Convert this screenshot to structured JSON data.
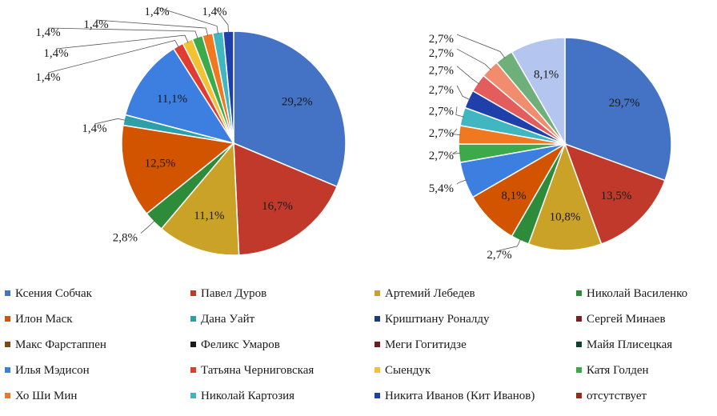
{
  "chart_data": [
    {
      "type": "pie",
      "slices": [
        {
          "name": "Ксения Собчак",
          "value": 29.2,
          "label": "29,2%"
        },
        {
          "name": "Павел Дуров",
          "value": 16.7,
          "label": "16,7%"
        },
        {
          "name": "Артемий Лебедев",
          "value": 11.1,
          "label": "11,1%"
        },
        {
          "name": "Николай Василенко",
          "value": 2.8,
          "label": "2,8%"
        },
        {
          "name": "Илон Маск",
          "value": 12.5,
          "label": "12,5%"
        },
        {
          "name": "Дана Уайт",
          "value": 1.4,
          "label": "1,4%"
        },
        {
          "name": "Илья Мэдисон",
          "value": 11.1,
          "label": "11,1%"
        },
        {
          "name": "Татьяна Черниговская",
          "value": 1.4,
          "label": "1,4%"
        },
        {
          "name": "Сыендук",
          "value": 1.4,
          "label": "1,4%"
        },
        {
          "name": "Катя Голден",
          "value": 1.4,
          "label": "1,4%"
        },
        {
          "name": "Хо Ши Мин",
          "value": 1.4,
          "label": "1,4%"
        },
        {
          "name": "Николай Картозия",
          "value": 1.4,
          "label": "1,4%"
        },
        {
          "name": "Никита Иванов (Кит Иванов)",
          "value": 1.4,
          "label": "1,4%"
        }
      ]
    },
    {
      "type": "pie",
      "slices": [
        {
          "name": "Ксения Собчак",
          "value": 29.7,
          "label": "29,7%"
        },
        {
          "name": "Павел Дуров",
          "value": 13.5,
          "label": "13,5%"
        },
        {
          "name": "Артемий Лебедев",
          "value": 10.8,
          "label": "10,8%"
        },
        {
          "name": "Николай Василенко",
          "value": 2.7,
          "label": "2,7%"
        },
        {
          "name": "Илон Маск",
          "value": 8.1,
          "label": "8,1%"
        },
        {
          "name": "Илья Мэдисон",
          "value": 5.4,
          "label": "5,4%"
        },
        {
          "name": "Катя Голден",
          "value": 2.7,
          "label": "2,7%"
        },
        {
          "name": "Хо Ши Мин",
          "value": 2.7,
          "label": "2,7%"
        },
        {
          "name": "Николай Картозия",
          "value": 2.7,
          "label": "2,7%"
        },
        {
          "name": "Никита Иванов (Кит Иванов)",
          "value": 2.7,
          "label": "2,7%"
        },
        {
          "name": "Татьяна Черниговская",
          "value": 2.7,
          "label": "2,7%"
        },
        {
          "name": "Сыендук",
          "value": 2.7,
          "label": "2,7%"
        },
        {
          "name": "Катя Голден",
          "value": 2.7,
          "label": "2,7%"
        },
        {
          "name": "отсутствует",
          "value": 8.1,
          "label": "8,1%"
        }
      ]
    }
  ],
  "legend": [
    {
      "name": "Ксения Собчак",
      "color": "#4472C4"
    },
    {
      "name": "Павел Дуров",
      "color": "#C0392B"
    },
    {
      "name": "Артемий Лебедев",
      "color": "#C9A227"
    },
    {
      "name": "Николай Василенко",
      "color": "#2E8B3A"
    },
    {
      "name": "Илон Маск",
      "color": "#D35400"
    },
    {
      "name": "Дана Уайт",
      "color": "#2E9EA8"
    },
    {
      "name": "Криштиану Роналду",
      "color": "#1F3A7A"
    },
    {
      "name": "Сергей Минаев",
      "color": "#7B2020"
    },
    {
      "name": "Макс Фарстаппен",
      "color": "#7A4A10"
    },
    {
      "name": "Феликс Умаров",
      "color": "#1A1A1A"
    },
    {
      "name": "Меги Гогитидзе",
      "color": "#6B1E1E"
    },
    {
      "name": "Майя Плисецкая",
      "color": "#0F4030"
    },
    {
      "name": "Илья Мэдисон",
      "color": "#3D7FE0"
    },
    {
      "name": "Татьяна Черниговская",
      "color": "#E03C31"
    },
    {
      "name": "Сыендук",
      "color": "#F1C232"
    },
    {
      "name": "Катя Голден",
      "color": "#3CAA4A"
    },
    {
      "name": "Хо Ши Мин",
      "color": "#F07820"
    },
    {
      "name": "Николай Картозия",
      "color": "#3FB6C0"
    },
    {
      "name": "Никита Иванов (Кит Иванов)",
      "color": "#1F3FAA"
    },
    {
      "name": "отсутствует",
      "color": "#9B2A1E"
    }
  ]
}
